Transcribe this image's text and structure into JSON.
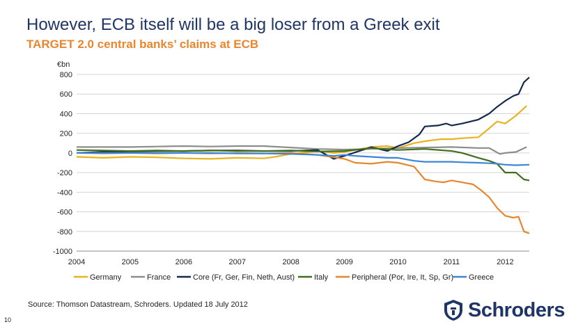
{
  "header": {
    "title": "However, ECB itself will be a big loser from a Greek exit",
    "subtitle": "TARGET 2.0 central banks’ claims at ECB"
  },
  "footer": {
    "source": "Source: Thomson Datastream, Schroders. Updated 18 July 2012",
    "page_number": "10",
    "logo_text": "Schroders"
  },
  "colors": {
    "title": "#1f3566",
    "subtitle": "#e8862e",
    "Germany": "#e8b31f",
    "France": "#8c8c8c",
    "Core": "#14284e",
    "Italy": "#3f6e1f",
    "Peripheral": "#e8862e",
    "Greece": "#3d85d6"
  },
  "chart_data": {
    "type": "line",
    "title": "TARGET 2.0 central banks’ claims at ECB",
    "ylabel": "€bn",
    "xlabel": "",
    "ylim": [
      -1000,
      800
    ],
    "xlim": [
      2004,
      2012.45
    ],
    "yticks": [
      800,
      600,
      400,
      200,
      0,
      -200,
      -400,
      -600,
      -800,
      -1000
    ],
    "xticks": [
      2004,
      2005,
      2006,
      2007,
      2008,
      2009,
      2010,
      2011,
      2012
    ],
    "grid": true,
    "legend_position": "bottom",
    "series": [
      {
        "name": "Germany",
        "x": [
          2004,
          2004.5,
          2005,
          2005.5,
          2006,
          2006.5,
          2007,
          2007.5,
          2007.7,
          2008,
          2008.5,
          2008.8,
          2009,
          2009.5,
          2009.8,
          2010,
          2010.3,
          2010.5,
          2010.8,
          2011,
          2011.2,
          2011.5,
          2011.7,
          2011.85,
          2012,
          2012.2,
          2012.4
        ],
        "values": [
          -40,
          -50,
          -40,
          -45,
          -55,
          -60,
          -50,
          -55,
          -40,
          -10,
          20,
          0,
          10,
          60,
          70,
          50,
          100,
          120,
          140,
          140,
          150,
          160,
          250,
          320,
          300,
          380,
          480
        ]
      },
      {
        "name": "France",
        "x": [
          2004,
          2004.5,
          2005,
          2005.5,
          2006,
          2006.5,
          2007,
          2007.5,
          2008,
          2008.5,
          2009,
          2009.5,
          2010,
          2010.5,
          2011,
          2011.5,
          2011.7,
          2011.9,
          2012,
          2012.2,
          2012.4
        ],
        "values": [
          60,
          60,
          60,
          65,
          70,
          65,
          70,
          70,
          55,
          40,
          35,
          40,
          50,
          55,
          60,
          50,
          50,
          -10,
          0,
          10,
          60
        ]
      },
      {
        "name": "Core (Fr, Ger, Fin, Neth, Aust)",
        "x": [
          2004,
          2004.5,
          2005,
          2005.5,
          2006,
          2006.5,
          2007,
          2007.5,
          2008,
          2008.5,
          2008.8,
          2009,
          2009.5,
          2009.8,
          2010,
          2010.2,
          2010.4,
          2010.5,
          2010.75,
          2010.9,
          2011,
          2011.2,
          2011.5,
          2011.7,
          2011.85,
          2012,
          2012.15,
          2012.25,
          2012.35,
          2012.45
        ],
        "values": [
          0,
          10,
          15,
          20,
          20,
          25,
          25,
          20,
          20,
          30,
          -60,
          -30,
          60,
          20,
          70,
          110,
          190,
          270,
          280,
          300,
          280,
          300,
          340,
          400,
          470,
          530,
          580,
          600,
          720,
          770
        ]
      },
      {
        "name": "Italy",
        "x": [
          2004,
          2004.5,
          2005,
          2005.5,
          2006,
          2006.5,
          2007,
          2007.5,
          2008,
          2008.5,
          2009,
          2009.5,
          2010,
          2010.5,
          2011,
          2011.2,
          2011.5,
          2011.7,
          2011.85,
          2012,
          2012.2,
          2012.35,
          2012.45
        ],
        "values": [
          30,
          25,
          20,
          25,
          20,
          25,
          20,
          20,
          25,
          15,
          20,
          50,
          30,
          40,
          20,
          0,
          -50,
          -80,
          -110,
          -200,
          -200,
          -270,
          -280
        ]
      },
      {
        "name": "Peripheral  (Por, Ire, It, Sp, Gr)",
        "x": [
          2004,
          2004.5,
          2005,
          2005.5,
          2006,
          2006.5,
          2007,
          2007.5,
          2008,
          2008.5,
          2009,
          2009.2,
          2009.5,
          2009.8,
          2010,
          2010.3,
          2010.5,
          2010.7,
          2010.85,
          2011,
          2011.2,
          2011.4,
          2011.55,
          2011.7,
          2011.85,
          2012,
          2012.15,
          2012.25,
          2012.35,
          2012.45
        ],
        "values": [
          0,
          -5,
          0,
          -5,
          0,
          -5,
          0,
          -5,
          0,
          -20,
          -60,
          -100,
          -110,
          -90,
          -100,
          -140,
          -270,
          -290,
          -300,
          -280,
          -300,
          -320,
          -380,
          -450,
          -560,
          -640,
          -660,
          -650,
          -800,
          -820
        ]
      },
      {
        "name": "Greece",
        "x": [
          2004,
          2004.5,
          2005,
          2005.5,
          2006,
          2006.5,
          2007,
          2007.5,
          2008,
          2008.5,
          2008.8,
          2009,
          2009.2,
          2009.5,
          2009.8,
          2010,
          2010.3,
          2010.5,
          2010.8,
          2011,
          2011.2,
          2011.5,
          2011.7,
          2011.85,
          2012,
          2012.2,
          2012.45
        ],
        "values": [
          0,
          0,
          0,
          0,
          0,
          0,
          -5,
          -5,
          -10,
          -20,
          -30,
          -20,
          -30,
          -40,
          -50,
          -50,
          -80,
          -90,
          -90,
          -90,
          -95,
          -100,
          -105,
          -110,
          -120,
          -125,
          -120
        ]
      }
    ]
  }
}
